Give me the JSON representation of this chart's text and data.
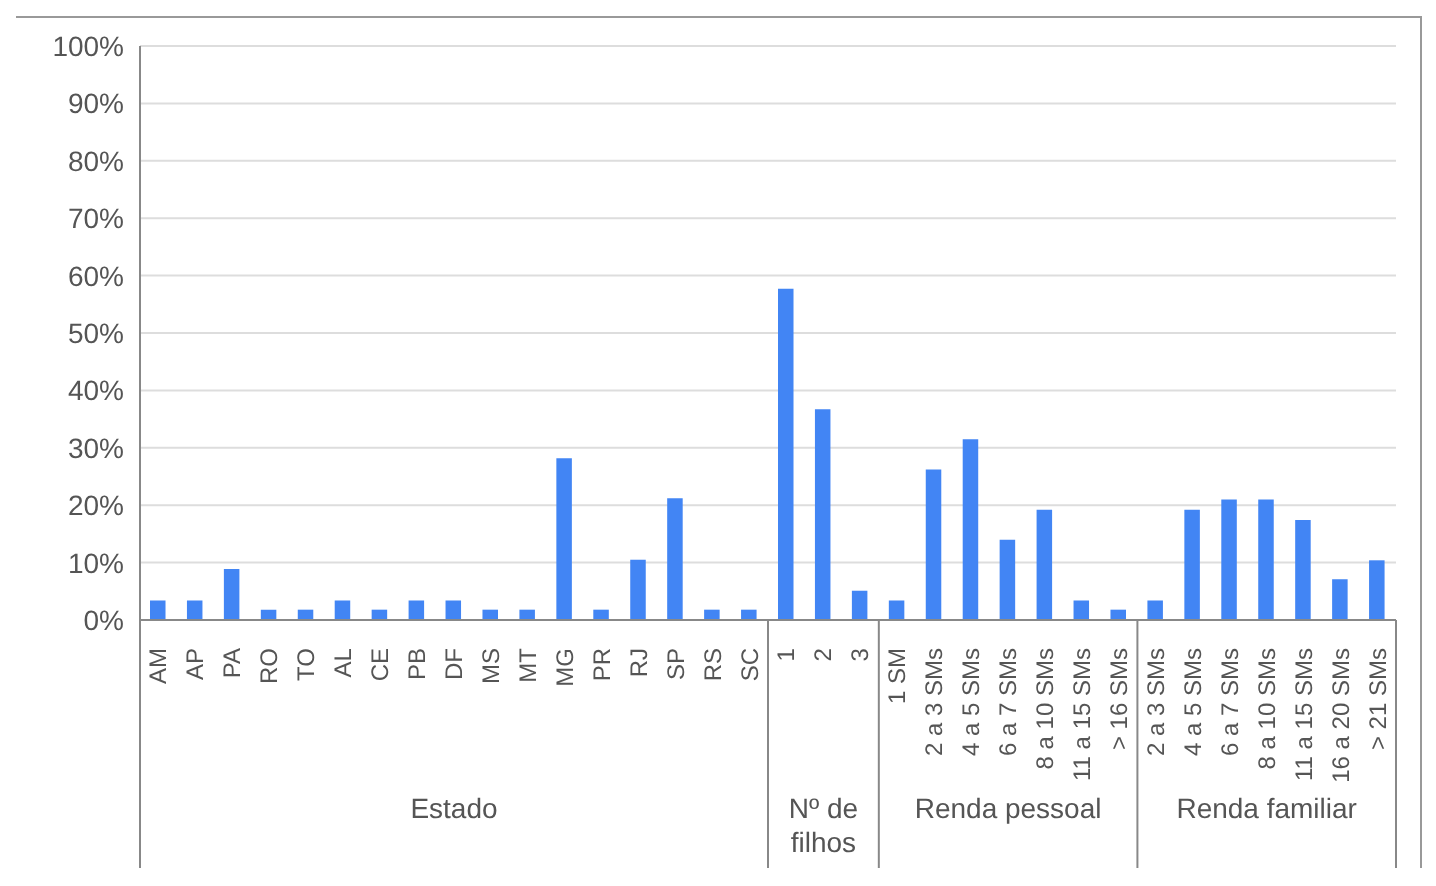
{
  "chart_data": {
    "type": "bar",
    "categories": [
      "AM",
      "AP",
      "PA",
      "RO",
      "TO",
      "AL",
      "CE",
      "PB",
      "DF",
      "MS",
      "MT",
      "MG",
      "PR",
      "RJ",
      "SP",
      "RS",
      "SC",
      "1",
      "2",
      "3",
      "1 SM",
      "2 a 3 SMs",
      "4 a 5 SMs",
      "6 a 7 SMs",
      "8 a 10 SMs",
      "11 a 15 SMs",
      "> 16 SMs",
      "2 a 3 SMs",
      "4 a 5 SMs",
      "6 a 7 SMs",
      "8 a 10 SMs",
      "11 a 15 SMs",
      "16 a 20 SMs",
      "> 21 SMs"
    ],
    "values": [
      3.4,
      3.4,
      8.9,
      1.8,
      1.8,
      3.4,
      1.8,
      3.4,
      3.4,
      1.8,
      1.8,
      28.2,
      1.8,
      10.5,
      21.2,
      1.8,
      1.8,
      57.7,
      36.7,
      5.1,
      3.4,
      26.2,
      31.5,
      14.0,
      19.2,
      3.4,
      1.8,
      3.4,
      19.2,
      21.0,
      21.0,
      17.4,
      7.1,
      10.4
    ],
    "color": "#4285f4",
    "ylim": [
      0,
      100
    ],
    "yticks": [
      {
        "value": 0,
        "label": "0%"
      },
      {
        "value": 10,
        "label": "10%"
      },
      {
        "value": 20,
        "label": "20%"
      },
      {
        "value": 30,
        "label": "30%"
      },
      {
        "value": 40,
        "label": "40%"
      },
      {
        "value": 50,
        "label": "50%"
      },
      {
        "value": 60,
        "label": "60%"
      },
      {
        "value": 70,
        "label": "70%"
      },
      {
        "value": 80,
        "label": "80%"
      },
      {
        "value": 90,
        "label": "90%"
      },
      {
        "value": 100,
        "label": "100%"
      }
    ],
    "grid": "y",
    "annotations": [
      "Estado",
      "Nº de filhos",
      "Renda pessoal",
      "Renda familiar"
    ]
  }
}
